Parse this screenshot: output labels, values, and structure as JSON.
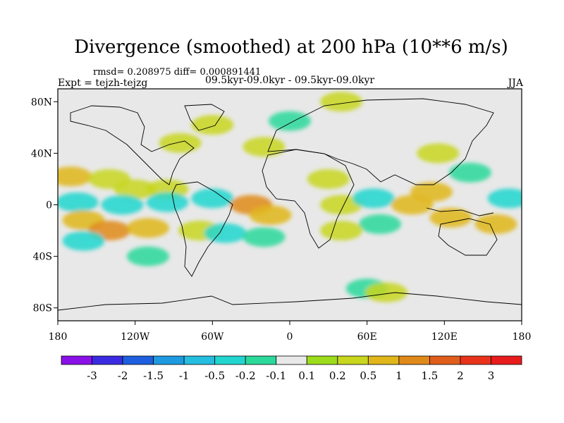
{
  "chart_data": {
    "type": "heatmap",
    "title": "Divergence (smoothed) at 200 hPa (10**6 m/s)",
    "stats_label": "rmsd= 0.208975 diff= 0.000891441",
    "experiment_label": "Expt = tejzh-tejzg",
    "period_label": "09.5kyr-09.0kyr - 09.5kyr-09.0kyr",
    "season": "JJA",
    "x_ticks": [
      "180",
      "120W",
      "60W",
      "0",
      "60E",
      "120E",
      "180"
    ],
    "y_ticks": [
      "80N",
      "40N",
      "0",
      "40S",
      "80S"
    ],
    "lon_range": [
      -180,
      180
    ],
    "lat_range": [
      -90,
      90
    ],
    "colorbar": {
      "labels": [
        "-3",
        "-2",
        "-1.5",
        "-1",
        "-0.5",
        "-0.2",
        "-0.1",
        "0.1",
        "0.2",
        "0.5",
        "1",
        "1.5",
        "2",
        "3"
      ],
      "colors": [
        "#8a10e8",
        "#3a2be3",
        "#1e5fe0",
        "#1d9ae0",
        "#25bde0",
        "#22d6cf",
        "#2bd99b",
        "#e8e8e8",
        "#9ddc1b",
        "#c8d61d",
        "#e0b61a",
        "#e0891b",
        "#e05d1b",
        "#e8331a",
        "#e81c1c"
      ]
    },
    "fields": [
      {
        "lon": -170,
        "lat": 22,
        "value": 0.5
      },
      {
        "lon": -140,
        "lat": 20,
        "value": 0.2
      },
      {
        "lon": -120,
        "lat": 12,
        "value": 0.2
      },
      {
        "lon": -95,
        "lat": 12,
        "value": 0.2
      },
      {
        "lon": -165,
        "lat": 2,
        "value": -0.5
      },
      {
        "lon": -130,
        "lat": 0,
        "value": -0.5
      },
      {
        "lon": -95,
        "lat": 2,
        "value": -0.5
      },
      {
        "lon": -60,
        "lat": 5,
        "value": -0.5
      },
      {
        "lon": -30,
        "lat": 0,
        "value": 1.0
      },
      {
        "lon": -15,
        "lat": -8,
        "value": 0.5
      },
      {
        "lon": -160,
        "lat": -12,
        "value": 0.5
      },
      {
        "lon": -140,
        "lat": -20,
        "value": 1.0
      },
      {
        "lon": -110,
        "lat": -18,
        "value": 0.5
      },
      {
        "lon": -70,
        "lat": -20,
        "value": 0.2
      },
      {
        "lon": -50,
        "lat": -22,
        "value": -0.5
      },
      {
        "lon": -20,
        "lat": -25,
        "value": -0.2
      },
      {
        "lon": -160,
        "lat": -28,
        "value": -0.5
      },
      {
        "lon": -110,
        "lat": -40,
        "value": -0.2
      },
      {
        "lon": -85,
        "lat": 48,
        "value": 0.2
      },
      {
        "lon": -60,
        "lat": 62,
        "value": 0.2
      },
      {
        "lon": -20,
        "lat": 45,
        "value": 0.2
      },
      {
        "lon": 0,
        "lat": 65,
        "value": -0.2
      },
      {
        "lon": 40,
        "lat": 80,
        "value": 0.2
      },
      {
        "lon": 30,
        "lat": 20,
        "value": 0.2
      },
      {
        "lon": 40,
        "lat": 0,
        "value": 0.2
      },
      {
        "lon": 65,
        "lat": 5,
        "value": -0.5
      },
      {
        "lon": 70,
        "lat": -15,
        "value": -0.2
      },
      {
        "lon": 40,
        "lat": -20,
        "value": 0.2
      },
      {
        "lon": 95,
        "lat": 0,
        "value": 0.5
      },
      {
        "lon": 110,
        "lat": 10,
        "value": 0.5
      },
      {
        "lon": 125,
        "lat": -10,
        "value": 0.5
      },
      {
        "lon": 160,
        "lat": -15,
        "value": 0.5
      },
      {
        "lon": 170,
        "lat": 5,
        "value": -0.5
      },
      {
        "lon": 140,
        "lat": 25,
        "value": -0.2
      },
      {
        "lon": 115,
        "lat": 40,
        "value": 0.2
      },
      {
        "lon": 60,
        "lat": -65,
        "value": -0.2
      },
      {
        "lon": 75,
        "lat": -68,
        "value": 0.2
      }
    ]
  }
}
